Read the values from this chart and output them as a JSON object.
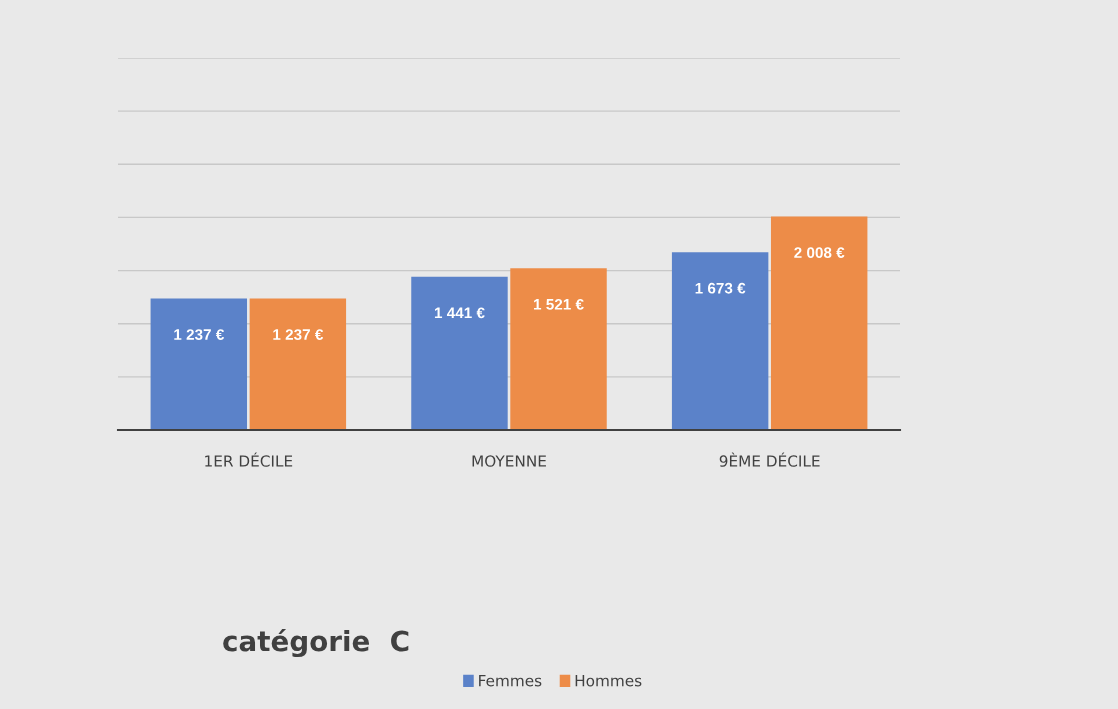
{
  "chart_data": {
    "type": "bar",
    "title": "catégorie  C",
    "categories": [
      "1ER DÉCILE",
      "MOYENNE",
      "9ÈME DÉCILE"
    ],
    "series": [
      {
        "name": "Femmes",
        "color": "#5b82c9",
        "values": [
          1237,
          1441,
          1673
        ],
        "value_labels": [
          "1 237 €",
          "1 441 €",
          "1 673 €"
        ]
      },
      {
        "name": "Hommes",
        "color": "#ed8c48",
        "values": [
          1237,
          1521,
          2008
        ],
        "value_labels": [
          "1 237 €",
          "1 521 €",
          "2 008 €"
        ]
      }
    ],
    "ylim": [
      0,
      3500
    ],
    "yticks": [
      {
        "value": 0,
        "label": null
      },
      {
        "value": 500,
        "label": null
      },
      {
        "value": 1000,
        "label": null
      },
      {
        "value": 1500,
        "label": null
      },
      {
        "value": 2000,
        "label": null
      },
      {
        "value": 2500,
        "label": null
      },
      {
        "value": 3000,
        "label": null
      },
      {
        "value": 3500,
        "label": null
      }
    ],
    "grid": "y",
    "legend": "bottom",
    "tick_labels": "x"
  }
}
